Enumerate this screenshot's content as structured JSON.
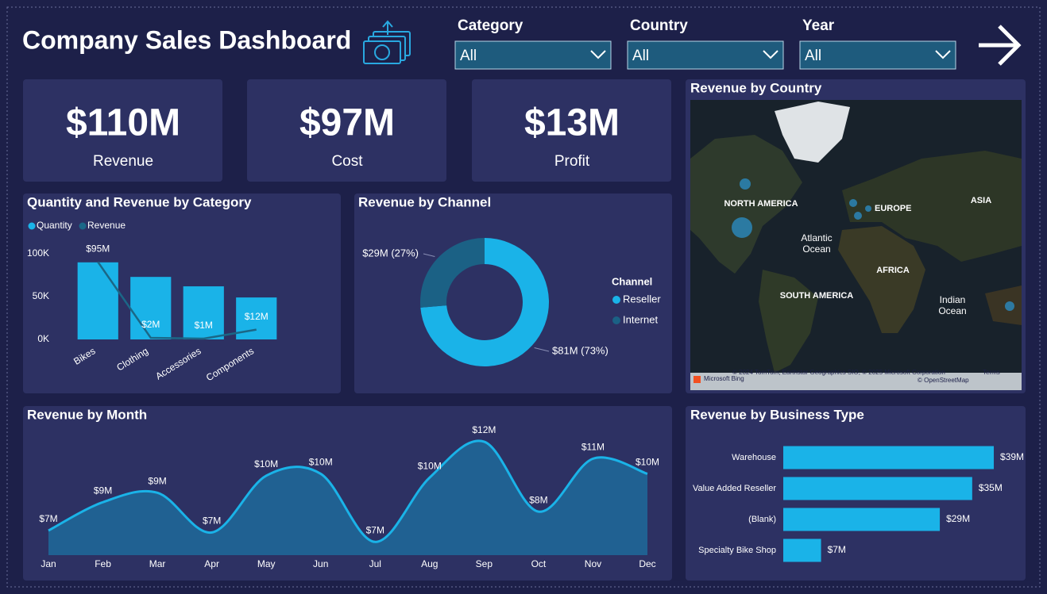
{
  "header": {
    "title": "Company Sales Dashboard"
  },
  "filters": [
    {
      "label": "Category",
      "value": "All"
    },
    {
      "label": "Country",
      "value": "All"
    },
    {
      "label": "Year",
      "value": "All"
    }
  ],
  "kpis": [
    {
      "value": "$110M",
      "label": "Revenue"
    },
    {
      "value": "$97M",
      "label": "Cost"
    },
    {
      "value": "$13M",
      "label": "Profit"
    }
  ],
  "map": {
    "title": "Revenue by Country",
    "labels": [
      "NORTH AMERICA",
      "EUROPE",
      "ASIA",
      "Atlantic",
      "Ocean",
      "AFRICA",
      "SOUTH AMERICA",
      "Indian",
      "Ocean"
    ],
    "attribution": [
      "Microsoft Bing",
      "© 2024 TomTom, Earthstar Geographics SIO, © 2025 Microsoft Corporation",
      "Terms",
      "© OpenStreetMap"
    ]
  },
  "chart_data": [
    {
      "type": "combo",
      "title": "Quantity and Revenue by Category",
      "categories": [
        "Bikes",
        "Clothing",
        "Accessories",
        "Components"
      ],
      "series": [
        {
          "name": "Quantity",
          "color": "#1ab3e8",
          "values": [
            90000,
            73000,
            62000,
            49000
          ]
        },
        {
          "name": "Revenue",
          "color": "#1b6787",
          "axis": "y2",
          "values": [
            95,
            2,
            1,
            12
          ],
          "value_labels": [
            "$95M",
            "$2M",
            "$1M",
            "$12M"
          ]
        }
      ],
      "ylim": [
        0,
        100000
      ],
      "yticks": [
        {
          "value": 0,
          "label": "0K"
        },
        {
          "value": 50000,
          "label": "50K"
        },
        {
          "value": 100000,
          "label": "100K"
        }
      ],
      "y2lim": [
        0,
        105
      ]
    },
    {
      "type": "donut",
      "title": "Revenue by Channel",
      "legend_title": "Channel",
      "series": [
        {
          "name": "Reseller",
          "color": "#1ab3e8",
          "values": [
            81
          ],
          "value_labels": [
            "$81M (73%)"
          ]
        },
        {
          "name": "Internet",
          "color": "#1b6185",
          "values": [
            29
          ],
          "value_labels": [
            "$29M (27%)"
          ]
        }
      ]
    },
    {
      "type": "area",
      "title": "Revenue by Month",
      "categories": [
        "Jan",
        "Feb",
        "Mar",
        "Apr",
        "May",
        "Jun",
        "Jul",
        "Aug",
        "Sep",
        "Oct",
        "Nov",
        "Dec"
      ],
      "values": [
        7.4,
        8.9,
        9.4,
        7.3,
        10.3,
        10.4,
        6.8,
        10.2,
        12.1,
        8.4,
        11.2,
        10.4
      ],
      "value_labels": [
        "$7M",
        "$9M",
        "$9M",
        "$7M",
        "$10M",
        "$10M",
        "$7M",
        "$10M",
        "$12M",
        "$8M",
        "$11M",
        "$10M"
      ],
      "color": "#1ab3e8",
      "ylim": [
        6.1,
        12.6
      ]
    },
    {
      "type": "hbar",
      "title": "Revenue by Business Type",
      "categories": [
        "Warehouse",
        "Value Added Reseller",
        "(Blank)",
        "Specialty Bike Shop"
      ],
      "values": [
        39,
        35,
        29,
        7
      ],
      "value_labels": [
        "$39M",
        "$35M",
        "$29M",
        "$7M"
      ],
      "color": "#1ab3e8",
      "xlim": [
        0,
        44
      ]
    }
  ]
}
